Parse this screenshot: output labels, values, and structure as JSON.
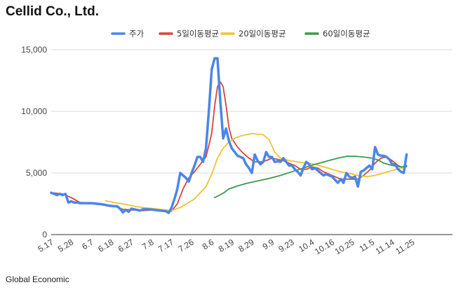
{
  "title": "Cellid Co., Ltd.",
  "footer": "Global Economic",
  "chart_data": {
    "type": "line",
    "ylim": [
      0,
      15000
    ],
    "yticks": [
      0,
      5000,
      10000,
      15000
    ],
    "ytick_labels": [
      "0",
      "5,000",
      "10,000",
      "15,000"
    ],
    "x_range": [
      0,
      140
    ],
    "xticks": [
      {
        "i": 0,
        "label": "5.17"
      },
      {
        "i": 7,
        "label": "5.28"
      },
      {
        "i": 14,
        "label": "6.7"
      },
      {
        "i": 21,
        "label": "6.18"
      },
      {
        "i": 28,
        "label": "6.27"
      },
      {
        "i": 35,
        "label": "7.8"
      },
      {
        "i": 42,
        "label": "7.17"
      },
      {
        "i": 49,
        "label": "7.26"
      },
      {
        "i": 56,
        "label": "8.6"
      },
      {
        "i": 63,
        "label": "8.19"
      },
      {
        "i": 70,
        "label": "8.29"
      },
      {
        "i": 77,
        "label": "9.9"
      },
      {
        "i": 84,
        "label": "9.23"
      },
      {
        "i": 91,
        "label": "10.4"
      },
      {
        "i": 98,
        "label": "10.16"
      },
      {
        "i": 105,
        "label": "10.25"
      },
      {
        "i": 112,
        "label": "11.5"
      },
      {
        "i": 119,
        "label": "11.14"
      },
      {
        "i": 126,
        "label": "11.25"
      }
    ],
    "grid": true,
    "legend_position": "top",
    "series": [
      {
        "name": "주가",
        "color": "#4a86e8",
        "width": 3.5,
        "points": [
          [
            0,
            3400
          ],
          [
            1,
            3300
          ],
          [
            2,
            3200
          ],
          [
            3,
            3300
          ],
          [
            4,
            3200
          ],
          [
            5,
            3300
          ],
          [
            6,
            2600
          ],
          [
            7,
            2700
          ],
          [
            8,
            2600
          ],
          [
            9,
            2600
          ],
          [
            10,
            2550
          ],
          [
            12,
            2550
          ],
          [
            14,
            2550
          ],
          [
            16,
            2500
          ],
          [
            18,
            2450
          ],
          [
            20,
            2350
          ],
          [
            22,
            2300
          ],
          [
            23,
            2300
          ],
          [
            24,
            2100
          ],
          [
            25,
            1800
          ],
          [
            26,
            2000
          ],
          [
            27,
            1850
          ],
          [
            28,
            2100
          ],
          [
            29,
            2050
          ],
          [
            30,
            2000
          ],
          [
            31,
            1950
          ],
          [
            32,
            2050
          ],
          [
            34,
            2050
          ],
          [
            36,
            2000
          ],
          [
            38,
            1950
          ],
          [
            40,
            1900
          ],
          [
            41,
            1750
          ],
          [
            42,
            2200
          ],
          [
            43,
            2900
          ],
          [
            44,
            3700
          ],
          [
            45,
            5000
          ],
          [
            46,
            4800
          ],
          [
            47,
            4600
          ],
          [
            48,
            4300
          ],
          [
            49,
            5000
          ],
          [
            50,
            5600
          ],
          [
            51,
            6300
          ],
          [
            52,
            6300
          ],
          [
            53,
            5900
          ],
          [
            54,
            7000
          ],
          [
            55,
            10000
          ],
          [
            56,
            13400
          ],
          [
            57,
            14300
          ],
          [
            58,
            14300
          ],
          [
            59,
            10800
          ],
          [
            60,
            7800
          ],
          [
            61,
            8600
          ],
          [
            62,
            7600
          ],
          [
            63,
            7000
          ],
          [
            64,
            6700
          ],
          [
            65,
            6400
          ],
          [
            66,
            6300
          ],
          [
            67,
            6200
          ],
          [
            68,
            5700
          ],
          [
            69,
            5400
          ],
          [
            70,
            5000
          ],
          [
            71,
            6500
          ],
          [
            72,
            6000
          ],
          [
            73,
            5700
          ],
          [
            74,
            5900
          ],
          [
            75,
            6700
          ],
          [
            76,
            6300
          ],
          [
            77,
            6300
          ],
          [
            78,
            5900
          ],
          [
            79,
            5950
          ],
          [
            80,
            5900
          ],
          [
            81,
            6200
          ],
          [
            82,
            5900
          ],
          [
            83,
            5600
          ],
          [
            84,
            5600
          ],
          [
            85,
            5300
          ],
          [
            86,
            5100
          ],
          [
            87,
            4800
          ],
          [
            88,
            5400
          ],
          [
            89,
            5900
          ],
          [
            90,
            5700
          ],
          [
            91,
            5300
          ],
          [
            92,
            5400
          ],
          [
            93,
            5200
          ],
          [
            94,
            5000
          ],
          [
            95,
            4800
          ],
          [
            96,
            4900
          ],
          [
            97,
            4800
          ],
          [
            98,
            4700
          ],
          [
            99,
            4450
          ],
          [
            100,
            4200
          ],
          [
            101,
            4500
          ],
          [
            102,
            4200
          ],
          [
            103,
            5000
          ],
          [
            104,
            4700
          ],
          [
            105,
            4600
          ],
          [
            106,
            4700
          ],
          [
            107,
            3900
          ],
          [
            108,
            5100
          ],
          [
            109,
            5200
          ],
          [
            110,
            5400
          ],
          [
            111,
            5600
          ],
          [
            112,
            5300
          ],
          [
            113,
            7100
          ],
          [
            114,
            6500
          ],
          [
            115,
            6400
          ],
          [
            116,
            6400
          ],
          [
            117,
            6300
          ],
          [
            118,
            6100
          ],
          [
            119,
            5700
          ],
          [
            120,
            5700
          ],
          [
            121,
            5300
          ],
          [
            122,
            5100
          ],
          [
            123,
            5000
          ],
          [
            124,
            6500
          ]
        ]
      },
      {
        "name": "5일이동평균",
        "color": "#d9443a",
        "width": 1.8,
        "points": [
          [
            0,
            3400
          ],
          [
            4,
            3300
          ],
          [
            7,
            3000
          ],
          [
            10,
            2600
          ],
          [
            14,
            2550
          ],
          [
            18,
            2450
          ],
          [
            22,
            2300
          ],
          [
            25,
            2050
          ],
          [
            28,
            2000
          ],
          [
            32,
            1950
          ],
          [
            36,
            2000
          ],
          [
            40,
            1950
          ],
          [
            42,
            1900
          ],
          [
            44,
            2500
          ],
          [
            46,
            3700
          ],
          [
            48,
            4600
          ],
          [
            50,
            5100
          ],
          [
            52,
            5700
          ],
          [
            54,
            6300
          ],
          [
            56,
            8200
          ],
          [
            57,
            10400
          ],
          [
            58,
            12000
          ],
          [
            59,
            12400
          ],
          [
            60,
            12000
          ],
          [
            61,
            10500
          ],
          [
            62,
            8700
          ],
          [
            63,
            7800
          ],
          [
            65,
            7100
          ],
          [
            67,
            6600
          ],
          [
            69,
            6200
          ],
          [
            71,
            5900
          ],
          [
            73,
            5900
          ],
          [
            75,
            6000
          ],
          [
            77,
            6200
          ],
          [
            79,
            6100
          ],
          [
            81,
            6000
          ],
          [
            83,
            5800
          ],
          [
            85,
            5600
          ],
          [
            87,
            5300
          ],
          [
            89,
            5300
          ],
          [
            91,
            5500
          ],
          [
            93,
            5400
          ],
          [
            95,
            5100
          ],
          [
            97,
            4900
          ],
          [
            99,
            4700
          ],
          [
            101,
            4500
          ],
          [
            103,
            4500
          ],
          [
            105,
            4500
          ],
          [
            107,
            4500
          ],
          [
            109,
            4800
          ],
          [
            111,
            5200
          ],
          [
            113,
            5800
          ],
          [
            115,
            6200
          ],
          [
            117,
            6300
          ],
          [
            119,
            6000
          ],
          [
            121,
            5600
          ],
          [
            123,
            5400
          ],
          [
            124,
            5600
          ]
        ]
      },
      {
        "name": "20일이동평균",
        "color": "#f1c232",
        "width": 1.8,
        "points": [
          [
            19,
            2750
          ],
          [
            22,
            2600
          ],
          [
            26,
            2450
          ],
          [
            30,
            2250
          ],
          [
            34,
            2150
          ],
          [
            38,
            2050
          ],
          [
            42,
            1950
          ],
          [
            45,
            2200
          ],
          [
            48,
            2600
          ],
          [
            50,
            2900
          ],
          [
            52,
            3400
          ],
          [
            54,
            3900
          ],
          [
            56,
            4900
          ],
          [
            58,
            6200
          ],
          [
            60,
            7000
          ],
          [
            62,
            7500
          ],
          [
            64,
            7800
          ],
          [
            66,
            8000
          ],
          [
            68,
            8100
          ],
          [
            70,
            8200
          ],
          [
            72,
            8150
          ],
          [
            74,
            8100
          ],
          [
            76,
            7700
          ],
          [
            78,
            6700
          ],
          [
            80,
            6200
          ],
          [
            83,
            6000
          ],
          [
            86,
            5900
          ],
          [
            89,
            5800
          ],
          [
            92,
            5700
          ],
          [
            95,
            5500
          ],
          [
            98,
            5300
          ],
          [
            101,
            5100
          ],
          [
            104,
            4950
          ],
          [
            107,
            4800
          ],
          [
            110,
            4700
          ],
          [
            113,
            4800
          ],
          [
            116,
            5000
          ],
          [
            119,
            5200
          ],
          [
            122,
            5400
          ],
          [
            124,
            5500
          ]
        ]
      },
      {
        "name": "60일이동평균",
        "color": "#3c9b4a",
        "width": 1.8,
        "points": [
          [
            57,
            3000
          ],
          [
            60,
            3350
          ],
          [
            62,
            3700
          ],
          [
            65,
            3950
          ],
          [
            68,
            4150
          ],
          [
            72,
            4350
          ],
          [
            76,
            4550
          ],
          [
            80,
            4800
          ],
          [
            84,
            5100
          ],
          [
            88,
            5400
          ],
          [
            92,
            5700
          ],
          [
            96,
            5950
          ],
          [
            100,
            6200
          ],
          [
            103,
            6350
          ],
          [
            106,
            6350
          ],
          [
            109,
            6300
          ],
          [
            112,
            6200
          ],
          [
            114,
            6050
          ],
          [
            116,
            5800
          ],
          [
            119,
            5600
          ],
          [
            122,
            5500
          ],
          [
            124,
            5500
          ]
        ]
      }
    ]
  }
}
